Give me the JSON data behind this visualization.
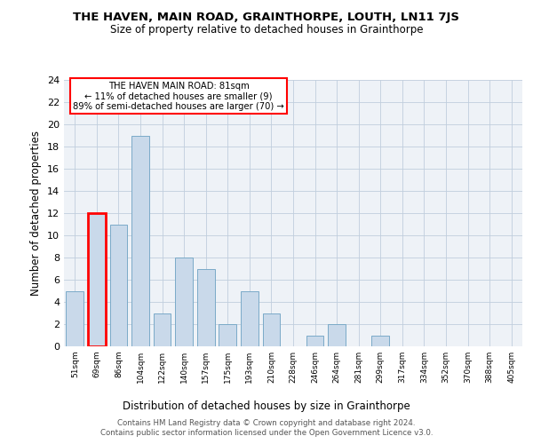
{
  "title1": "THE HAVEN, MAIN ROAD, GRAINTHORPE, LOUTH, LN11 7JS",
  "title2": "Size of property relative to detached houses in Grainthorpe",
  "xlabel": "Distribution of detached houses by size in Grainthorpe",
  "ylabel": "Number of detached properties",
  "bar_color": "#c9d9ea",
  "bar_edge_color": "#7aaac8",
  "categories": [
    "51sqm",
    "69sqm",
    "86sqm",
    "104sqm",
    "122sqm",
    "140sqm",
    "157sqm",
    "175sqm",
    "193sqm",
    "210sqm",
    "228sqm",
    "246sqm",
    "264sqm",
    "281sqm",
    "299sqm",
    "317sqm",
    "334sqm",
    "352sqm",
    "370sqm",
    "388sqm",
    "405sqm"
  ],
  "values": [
    5,
    12,
    11,
    19,
    3,
    8,
    7,
    2,
    5,
    3,
    0,
    1,
    2,
    0,
    1,
    0,
    0,
    0,
    0,
    0,
    0
  ],
  "highlight_bar_index": 1,
  "highlight_edge_color": "red",
  "annotation_text": "THE HAVEN MAIN ROAD: 81sqm\n← 11% of detached houses are smaller (9)\n89% of semi-detached houses are larger (70) →",
  "annotation_box_color": "white",
  "annotation_box_edge_color": "red",
  "ylim": [
    0,
    24
  ],
  "yticks": [
    0,
    2,
    4,
    6,
    8,
    10,
    12,
    14,
    16,
    18,
    20,
    22,
    24
  ],
  "footer1": "Contains HM Land Registry data © Crown copyright and database right 2024.",
  "footer2": "Contains public sector information licensed under the Open Government Licence v3.0.",
  "background_color": "#eef2f7",
  "grid_color": "#c0cedd"
}
